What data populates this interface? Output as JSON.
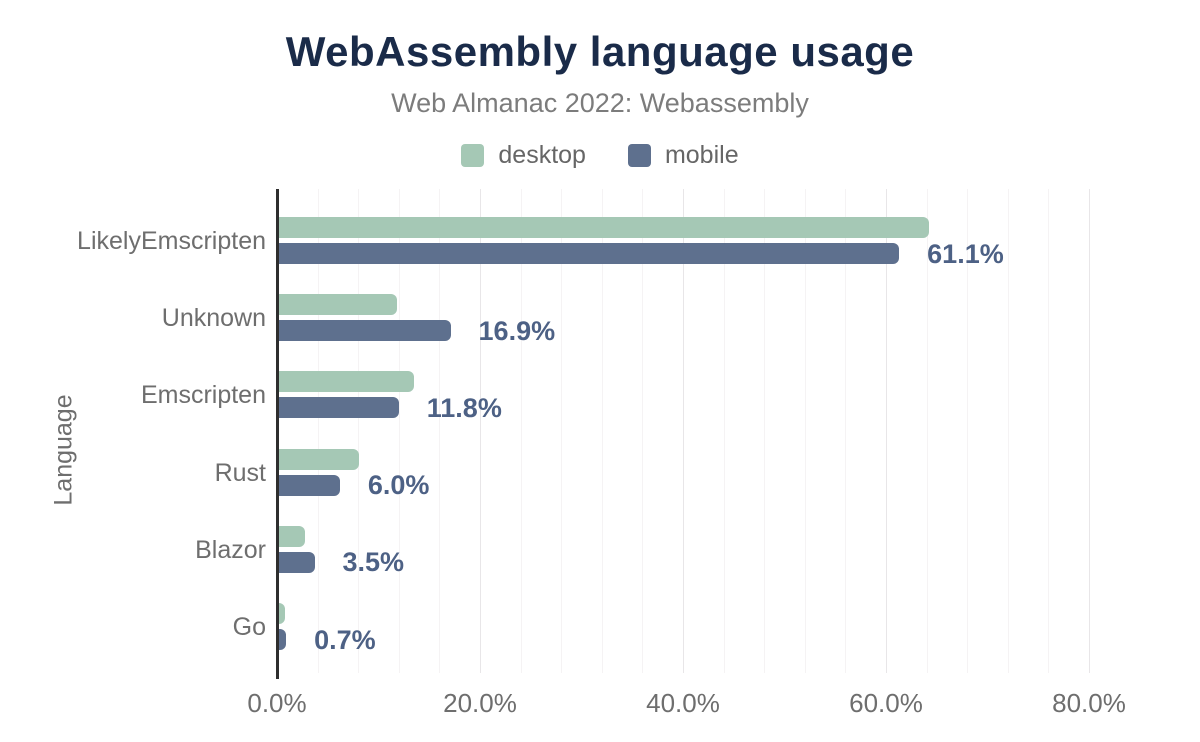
{
  "chart_data": {
    "type": "bar",
    "orientation": "horizontal",
    "title": "WebAssembly language usage",
    "subtitle": "Web Almanac 2022: Webassembly",
    "xlabel": "",
    "ylabel": "Language",
    "categories": [
      "LikelyEmscripten",
      "Unknown",
      "Emscripten",
      "Rust",
      "Blazor",
      "Go"
    ],
    "series": [
      {
        "name": "desktop",
        "color": "#a5c8b5",
        "values": [
          64.0,
          11.6,
          13.3,
          7.9,
          2.6,
          0.6
        ]
      },
      {
        "name": "mobile",
        "color": "#5e708e",
        "values": [
          61.1,
          16.9,
          11.8,
          6.0,
          3.5,
          0.7
        ]
      }
    ],
    "value_labels": [
      "61.1%",
      "16.9%",
      "11.8%",
      "6.0%",
      "3.5%",
      "0.7%"
    ],
    "value_labels_series": "mobile",
    "x_ticks": [
      {
        "label": "0.0%",
        "value": 0
      },
      {
        "label": "20.0%",
        "value": 20
      },
      {
        "label": "40.0%",
        "value": 40
      },
      {
        "label": "60.0%",
        "value": 60
      },
      {
        "label": "80.0%",
        "value": 80
      }
    ],
    "xlim": [
      0,
      81
    ],
    "minor_grid_interval": 4,
    "grid": true,
    "legend_position": "top"
  },
  "colors": {
    "title": "#1a2b49",
    "subtitle": "#7c7c7c",
    "axis_text": "#6e6e6e",
    "annotation": "#4d6185",
    "desktop_bar": "#a5c8b5",
    "mobile_bar": "#5e708e",
    "axis_line": "#2e2e2e",
    "grid_minor": "#f5f3f4",
    "grid_major": "#e8e6e8",
    "background": "#ffffff"
  }
}
